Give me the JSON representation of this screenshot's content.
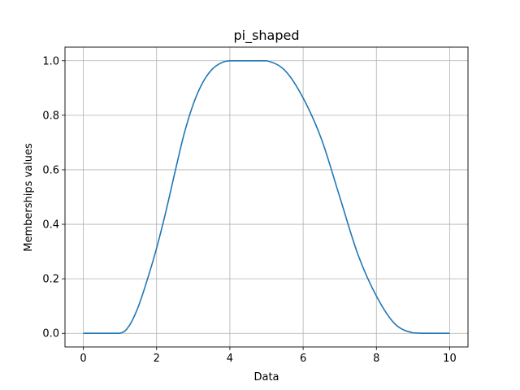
{
  "chart_data": {
    "type": "line",
    "title": "pi_shaped",
    "xlabel": "Data",
    "ylabel": "Memberships values",
    "xlim": [
      -0.5,
      10.5
    ],
    "ylim": [
      -0.05,
      1.05
    ],
    "xticks": [
      0,
      2,
      4,
      6,
      8,
      10
    ],
    "yticks": [
      0.0,
      0.2,
      0.4,
      0.6,
      0.8,
      1.0
    ],
    "xtick_labels": [
      "0",
      "2",
      "4",
      "6",
      "8",
      "10"
    ],
    "ytick_labels": [
      "0.0",
      "0.2",
      "0.4",
      "0.6",
      "0.8",
      "1.0"
    ],
    "grid": true,
    "line_color": "#1f77b4",
    "series": [
      {
        "x": [
          0,
          0.5,
          1.0,
          1.25,
          1.5,
          1.75,
          2.0,
          2.25,
          2.5,
          2.75,
          3.0,
          3.25,
          3.5,
          3.75,
          4.0,
          4.5,
          5.0,
          5.5,
          6.0,
          6.5,
          7.0,
          7.5,
          8.0,
          8.5,
          9.0,
          9.5,
          10.0
        ],
        "y": [
          0,
          0,
          0,
          0.0272,
          0.0976,
          0.1984,
          0.3125,
          0.4448,
          0.5904,
          0.7312,
          0.8403,
          0.9176,
          0.9664,
          0.9912,
          1.0,
          1.0,
          1.0,
          0.9648,
          0.8634,
          0.7124,
          0.5,
          0.2876,
          0.1366,
          0.0352,
          0.0015,
          0,
          0
        ]
      }
    ]
  }
}
